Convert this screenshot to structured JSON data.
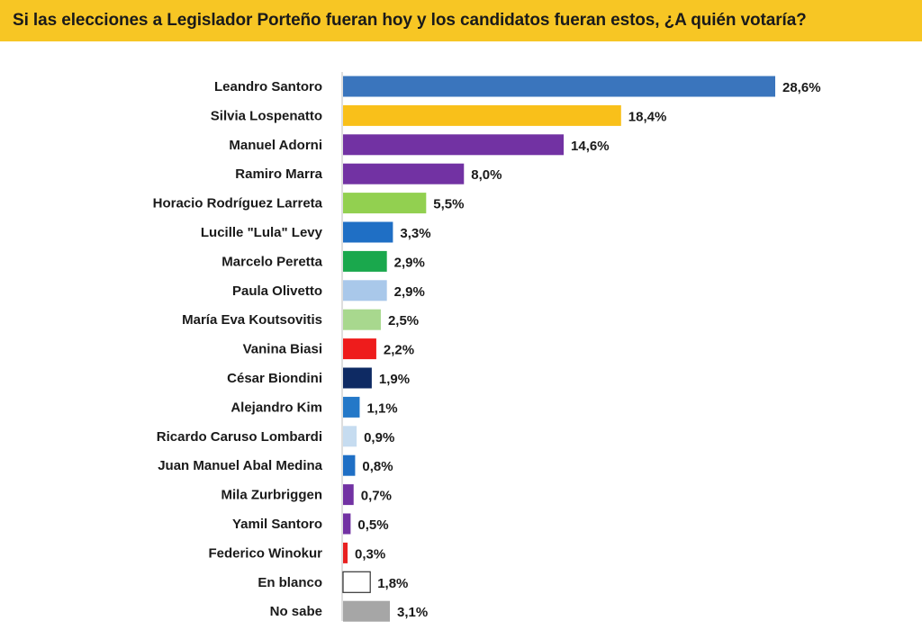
{
  "title": "Si las elecciones a Legislador Porteño fueran hoy y los candidatos fueran estos, ¿A quién votaría?",
  "colors": {
    "title_bar": "#f7c624",
    "axis": "#bdbdbd"
  },
  "chart_data": {
    "type": "bar",
    "orientation": "horizontal",
    "title": "Si las elecciones a Legislador Porteño fueran hoy y los candidatos fueran estos, ¿A quién votaría?",
    "xlim": [
      0,
      28.6
    ],
    "grid": false,
    "legend": "none",
    "categories": [
      "Leandro Santoro",
      "Silvia Lospenatto",
      "Manuel Adorni",
      "Ramiro Marra",
      "Horacio Rodríguez Larreta",
      "Lucille \"Lula\" Levy",
      "Marcelo Peretta",
      "Paula Olivetto",
      "María Eva Koutsovitis",
      "Vanina Biasi",
      "César Biondini",
      "Alejandro Kim",
      "Ricardo Caruso Lombardi",
      "Juan Manuel Abal Medina",
      "Mila Zurbriggen",
      "Yamil Santoro",
      "Federico Winokur",
      "En blanco",
      "No sabe"
    ],
    "values": [
      28.6,
      18.4,
      14.6,
      8.0,
      5.5,
      3.3,
      2.9,
      2.9,
      2.5,
      2.2,
      1.9,
      1.1,
      0.9,
      0.8,
      0.7,
      0.5,
      0.3,
      1.8,
      3.1
    ],
    "value_labels": [
      "28,6%",
      "18,4%",
      "14,6%",
      "8,0%",
      "5,5%",
      "3,3%",
      "2,9%",
      "2,9%",
      "2,5%",
      "2,2%",
      "1,9%",
      "1,1%",
      "0,9%",
      "0,8%",
      "0,7%",
      "0,5%",
      "0,3%",
      "1,8%",
      "3,1%"
    ],
    "bar_colors": [
      "#3a75bd",
      "#f9c01a",
      "#7232a3",
      "#7232a3",
      "#92d050",
      "#1f6fc5",
      "#1aa84d",
      "#a9c8ea",
      "#a8d88e",
      "#ee1c1c",
      "#0e2a63",
      "#2478c8",
      "#c6dcf0",
      "#1f6fc5",
      "#7232a3",
      "#7232a3",
      "#e82020",
      "#ffffff",
      "#a6a6a6"
    ],
    "bar_strokes": [
      null,
      null,
      null,
      null,
      null,
      null,
      null,
      null,
      null,
      null,
      null,
      null,
      null,
      null,
      null,
      null,
      null,
      "#333333",
      null
    ]
  }
}
